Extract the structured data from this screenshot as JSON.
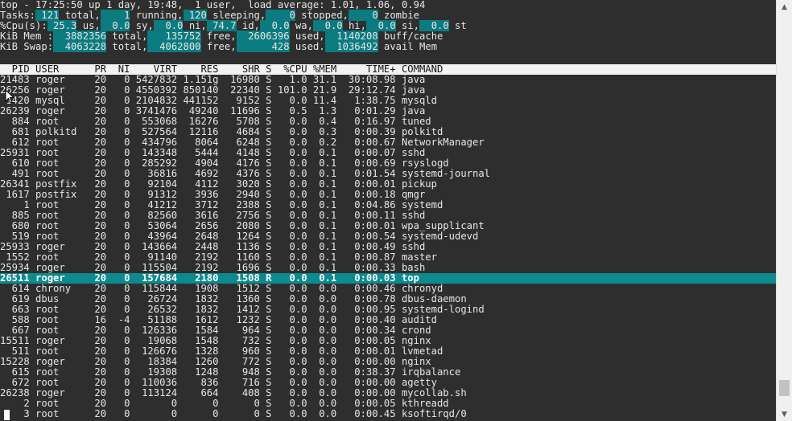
{
  "summary": {
    "line1": [
      {
        "text": "top - 17:25:50 up 1 day, 19:48,  1 user,  load average: 1.01, 1.06, 0.94",
        "hl": false
      }
    ],
    "line2": [
      {
        "text": "Tasks:",
        "hl": false
      },
      {
        "text": " 121",
        "hl": true
      },
      {
        "text": " total,",
        "hl": false
      },
      {
        "text": "    1",
        "hl": true
      },
      {
        "text": " running,",
        "hl": false
      },
      {
        "text": " 120",
        "hl": true
      },
      {
        "text": " sleeping,",
        "hl": false
      },
      {
        "text": "    0",
        "hl": true
      },
      {
        "text": " stopped,",
        "hl": false
      },
      {
        "text": "    0",
        "hl": true
      },
      {
        "text": " zombie",
        "hl": false
      }
    ],
    "line3": [
      {
        "text": "%Cpu(s):",
        "hl": false
      },
      {
        "text": " 25.3",
        "hl": true
      },
      {
        "text": " us,",
        "hl": false
      },
      {
        "text": "  0.0",
        "hl": true
      },
      {
        "text": " sy,",
        "hl": false
      },
      {
        "text": "  0.0",
        "hl": true
      },
      {
        "text": " ni,",
        "hl": false
      },
      {
        "text": " 74.7",
        "hl": true
      },
      {
        "text": " id,",
        "hl": false
      },
      {
        "text": "  0.0",
        "hl": true
      },
      {
        "text": " wa,",
        "hl": false
      },
      {
        "text": "  0.0",
        "hl": true
      },
      {
        "text": " hi,",
        "hl": false
      },
      {
        "text": "  0.0",
        "hl": true
      },
      {
        "text": " si,",
        "hl": false
      },
      {
        "text": "  0.0",
        "hl": true
      },
      {
        "text": " st",
        "hl": false
      }
    ],
    "line4": [
      {
        "text": "KiB Mem :",
        "hl": false
      },
      {
        "text": "  3882356",
        "hl": true
      },
      {
        "text": " total,",
        "hl": false
      },
      {
        "text": "   135752",
        "hl": true
      },
      {
        "text": " free,",
        "hl": false
      },
      {
        "text": "  2606396",
        "hl": true
      },
      {
        "text": " used,",
        "hl": false
      },
      {
        "text": "  1140208",
        "hl": true
      },
      {
        "text": " buff/cache",
        "hl": false
      }
    ],
    "line5": [
      {
        "text": "KiB Swap:",
        "hl": false
      },
      {
        "text": "  4063228",
        "hl": true
      },
      {
        "text": " total,",
        "hl": false
      },
      {
        "text": "  4062800",
        "hl": true
      },
      {
        "text": " free,",
        "hl": false
      },
      {
        "text": "      428",
        "hl": true
      },
      {
        "text": " used.",
        "hl": false
      },
      {
        "text": "  1036492",
        "hl": true
      },
      {
        "text": " avail Mem",
        "hl": false
      }
    ]
  },
  "table": {
    "header": "  PID USER      PR  NI    VIRT    RES    SHR S  %CPU %MEM     TIME+ COMMAND",
    "selected_index": 19,
    "rows": [
      {
        "pid": "21483",
        "user": "roger",
        "pr": "20",
        "ni": "0",
        "virt": "5427832",
        "res": "1.151g",
        "shr": "16980",
        "s": "S",
        "cpu": "1.0",
        "mem": "31.1",
        "time": "30:08.98",
        "cmd": "java"
      },
      {
        "pid": "26256",
        "user": "roger",
        "pr": "20",
        "ni": "0",
        "virt": "4550392",
        "res": "850140",
        "shr": "22340",
        "s": "S",
        "cpu": "101.0",
        "mem": "21.9",
        "time": "29:12.74",
        "cmd": "java"
      },
      {
        "pid": "1420",
        "user": "mysql",
        "pr": "20",
        "ni": "0",
        "virt": "2104832",
        "res": "441152",
        "shr": "9152",
        "s": "S",
        "cpu": "0.0",
        "mem": "11.4",
        "time": "1:38.75",
        "cmd": "mysqld"
      },
      {
        "pid": "26239",
        "user": "roger",
        "pr": "20",
        "ni": "0",
        "virt": "3741476",
        "res": "49240",
        "shr": "11696",
        "s": "S",
        "cpu": "0.5",
        "mem": "1.3",
        "time": "0:01.29",
        "cmd": "java"
      },
      {
        "pid": "884",
        "user": "root",
        "pr": "20",
        "ni": "0",
        "virt": "553068",
        "res": "16276",
        "shr": "5708",
        "s": "S",
        "cpu": "0.0",
        "mem": "0.4",
        "time": "0:16.97",
        "cmd": "tuned"
      },
      {
        "pid": "681",
        "user": "polkitd",
        "pr": "20",
        "ni": "0",
        "virt": "527564",
        "res": "12116",
        "shr": "4684",
        "s": "S",
        "cpu": "0.0",
        "mem": "0.3",
        "time": "0:00.39",
        "cmd": "polkitd"
      },
      {
        "pid": "612",
        "user": "root",
        "pr": "20",
        "ni": "0",
        "virt": "434796",
        "res": "8064",
        "shr": "6248",
        "s": "S",
        "cpu": "0.0",
        "mem": "0.2",
        "time": "0:00.67",
        "cmd": "NetworkManager"
      },
      {
        "pid": "25931",
        "user": "root",
        "pr": "20",
        "ni": "0",
        "virt": "143348",
        "res": "5444",
        "shr": "4148",
        "s": "S",
        "cpu": "0.0",
        "mem": "0.1",
        "time": "0:00.07",
        "cmd": "sshd"
      },
      {
        "pid": "610",
        "user": "root",
        "pr": "20",
        "ni": "0",
        "virt": "285292",
        "res": "4904",
        "shr": "4176",
        "s": "S",
        "cpu": "0.0",
        "mem": "0.1",
        "time": "0:00.69",
        "cmd": "rsyslogd"
      },
      {
        "pid": "491",
        "user": "root",
        "pr": "20",
        "ni": "0",
        "virt": "36816",
        "res": "4692",
        "shr": "4376",
        "s": "S",
        "cpu": "0.0",
        "mem": "0.1",
        "time": "0:01.54",
        "cmd": "systemd-journal"
      },
      {
        "pid": "26341",
        "user": "postfix",
        "pr": "20",
        "ni": "0",
        "virt": "92104",
        "res": "4112",
        "shr": "3020",
        "s": "S",
        "cpu": "0.0",
        "mem": "0.1",
        "time": "0:00.01",
        "cmd": "pickup"
      },
      {
        "pid": "1617",
        "user": "postfix",
        "pr": "20",
        "ni": "0",
        "virt": "91312",
        "res": "3936",
        "shr": "2940",
        "s": "S",
        "cpu": "0.0",
        "mem": "0.1",
        "time": "0:00.18",
        "cmd": "qmgr"
      },
      {
        "pid": "1",
        "user": "root",
        "pr": "20",
        "ni": "0",
        "virt": "41212",
        "res": "3712",
        "shr": "2388",
        "s": "S",
        "cpu": "0.0",
        "mem": "0.1",
        "time": "0:04.86",
        "cmd": "systemd"
      },
      {
        "pid": "885",
        "user": "root",
        "pr": "20",
        "ni": "0",
        "virt": "82560",
        "res": "3616",
        "shr": "2756",
        "s": "S",
        "cpu": "0.0",
        "mem": "0.1",
        "time": "0:00.11",
        "cmd": "sshd"
      },
      {
        "pid": "680",
        "user": "root",
        "pr": "20",
        "ni": "0",
        "virt": "53064",
        "res": "2656",
        "shr": "2080",
        "s": "S",
        "cpu": "0.0",
        "mem": "0.1",
        "time": "0:00.01",
        "cmd": "wpa_supplicant"
      },
      {
        "pid": "519",
        "user": "root",
        "pr": "20",
        "ni": "0",
        "virt": "43964",
        "res": "2648",
        "shr": "1264",
        "s": "S",
        "cpu": "0.0",
        "mem": "0.1",
        "time": "0:00.54",
        "cmd": "systemd-udevd"
      },
      {
        "pid": "25933",
        "user": "roger",
        "pr": "20",
        "ni": "0",
        "virt": "143664",
        "res": "2448",
        "shr": "1136",
        "s": "S",
        "cpu": "0.0",
        "mem": "0.1",
        "time": "0:00.49",
        "cmd": "sshd"
      },
      {
        "pid": "1552",
        "user": "root",
        "pr": "20",
        "ni": "0",
        "virt": "91140",
        "res": "2192",
        "shr": "1160",
        "s": "S",
        "cpu": "0.0",
        "mem": "0.1",
        "time": "0:00.87",
        "cmd": "master"
      },
      {
        "pid": "25934",
        "user": "roger",
        "pr": "20",
        "ni": "0",
        "virt": "115504",
        "res": "2192",
        "shr": "1696",
        "s": "S",
        "cpu": "0.0",
        "mem": "0.1",
        "time": "0:00.33",
        "cmd": "bash"
      },
      {
        "pid": "26511",
        "user": "roger",
        "pr": "20",
        "ni": "0",
        "virt": "157684",
        "res": "2180",
        "shr": "1508",
        "s": "R",
        "cpu": "0.0",
        "mem": "0.1",
        "time": "0:00.03",
        "cmd": "top"
      },
      {
        "pid": "614",
        "user": "chrony",
        "pr": "20",
        "ni": "0",
        "virt": "115844",
        "res": "1908",
        "shr": "1512",
        "s": "S",
        "cpu": "0.0",
        "mem": "0.0",
        "time": "0:00.46",
        "cmd": "chronyd"
      },
      {
        "pid": "619",
        "user": "dbus",
        "pr": "20",
        "ni": "0",
        "virt": "26724",
        "res": "1832",
        "shr": "1360",
        "s": "S",
        "cpu": "0.0",
        "mem": "0.0",
        "time": "0:00.78",
        "cmd": "dbus-daemon"
      },
      {
        "pid": "663",
        "user": "root",
        "pr": "20",
        "ni": "0",
        "virt": "26532",
        "res": "1832",
        "shr": "1412",
        "s": "S",
        "cpu": "0.0",
        "mem": "0.0",
        "time": "0:00.95",
        "cmd": "systemd-logind"
      },
      {
        "pid": "588",
        "user": "root",
        "pr": "16",
        "ni": "-4",
        "virt": "51188",
        "res": "1612",
        "shr": "1232",
        "s": "S",
        "cpu": "0.0",
        "mem": "0.0",
        "time": "0:00.40",
        "cmd": "auditd"
      },
      {
        "pid": "667",
        "user": "root",
        "pr": "20",
        "ni": "0",
        "virt": "126336",
        "res": "1584",
        "shr": "964",
        "s": "S",
        "cpu": "0.0",
        "mem": "0.0",
        "time": "0:00.34",
        "cmd": "crond"
      },
      {
        "pid": "15511",
        "user": "roger",
        "pr": "20",
        "ni": "0",
        "virt": "19068",
        "res": "1548",
        "shr": "732",
        "s": "S",
        "cpu": "0.0",
        "mem": "0.0",
        "time": "0:00.05",
        "cmd": "nginx"
      },
      {
        "pid": "511",
        "user": "root",
        "pr": "20",
        "ni": "0",
        "virt": "126676",
        "res": "1328",
        "shr": "960",
        "s": "S",
        "cpu": "0.0",
        "mem": "0.0",
        "time": "0:00.01",
        "cmd": "lvmetad"
      },
      {
        "pid": "15228",
        "user": "roger",
        "pr": "20",
        "ni": "0",
        "virt": "18384",
        "res": "1260",
        "shr": "772",
        "s": "S",
        "cpu": "0.0",
        "mem": "0.0",
        "time": "0:00.00",
        "cmd": "nginx"
      },
      {
        "pid": "615",
        "user": "root",
        "pr": "20",
        "ni": "0",
        "virt": "19308",
        "res": "1248",
        "shr": "948",
        "s": "S",
        "cpu": "0.0",
        "mem": "0.0",
        "time": "0:38.37",
        "cmd": "irqbalance"
      },
      {
        "pid": "672",
        "user": "root",
        "pr": "20",
        "ni": "0",
        "virt": "110036",
        "res": "836",
        "shr": "716",
        "s": "S",
        "cpu": "0.0",
        "mem": "0.0",
        "time": "0:00.00",
        "cmd": "agetty"
      },
      {
        "pid": "26238",
        "user": "roger",
        "pr": "20",
        "ni": "0",
        "virt": "113124",
        "res": "664",
        "shr": "408",
        "s": "S",
        "cpu": "0.0",
        "mem": "0.0",
        "time": "0:00.00",
        "cmd": "mycollab.sh"
      },
      {
        "pid": "2",
        "user": "root",
        "pr": "20",
        "ni": "0",
        "virt": "0",
        "res": "0",
        "shr": "0",
        "s": "S",
        "cpu": "0.0",
        "mem": "0.0",
        "time": "0:00.05",
        "cmd": "kthreadd"
      },
      {
        "pid": "3",
        "user": "root",
        "pr": "20",
        "ni": "0",
        "virt": "0",
        "res": "0",
        "shr": "0",
        "s": "S",
        "cpu": "0.0",
        "mem": "0.0",
        "time": "0:00.45",
        "cmd": "ksoftirqd/0"
      }
    ]
  },
  "scrollbar": {
    "up_icon": "scroll-up-arrow-icon",
    "down_icon": "scroll-down-arrow-icon",
    "position_fraction": 0.97
  },
  "colors": {
    "background": "#2e2e2e",
    "foreground": "#e6e6e6",
    "highlight": "#0c7b80",
    "selected_row": "#0c8a8f",
    "header_bg": "#f2f2f2"
  }
}
